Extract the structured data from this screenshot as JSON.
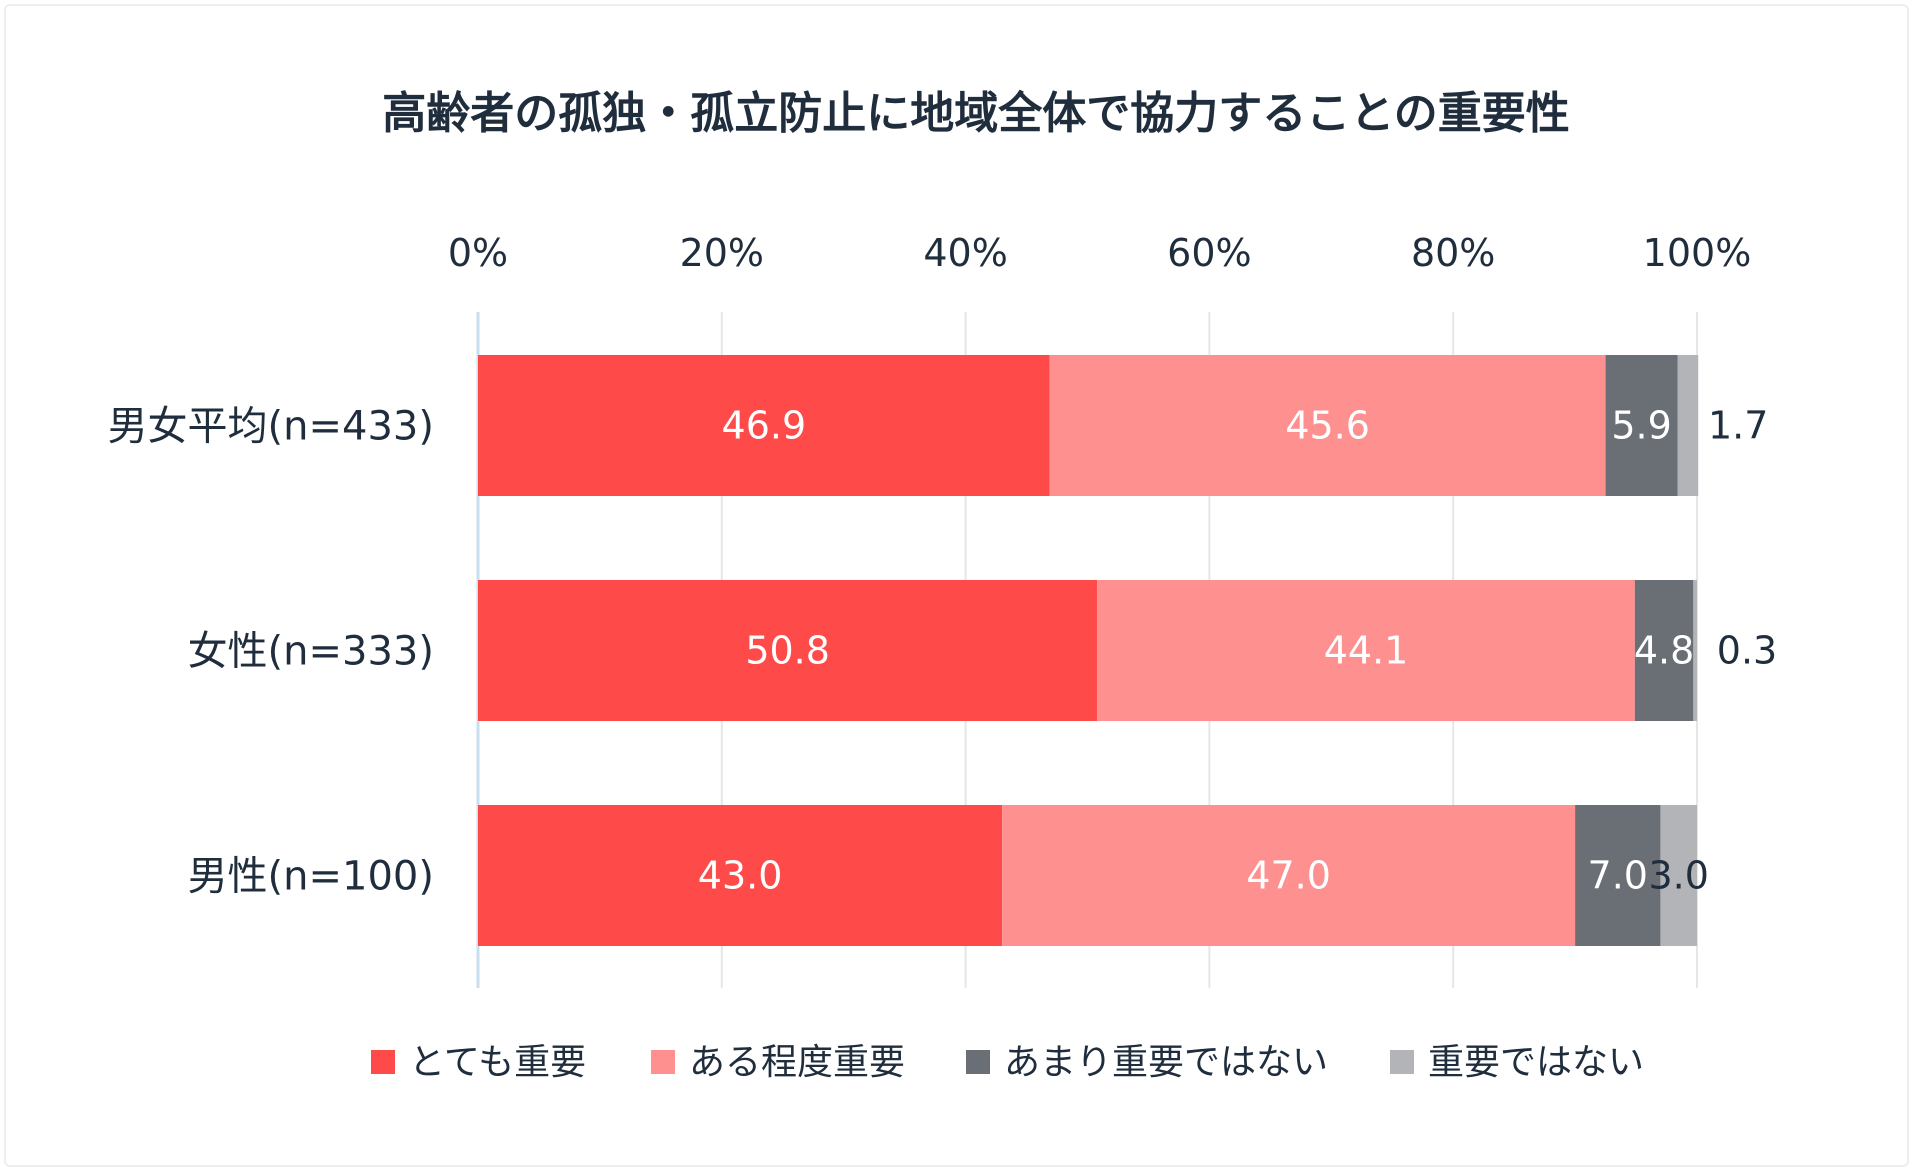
{
  "chart_data": {
    "type": "bar",
    "orientation": "horizontal",
    "stacked": true,
    "title": "高齢者の孤独・孤立防止に地域全体で協力することの重要性",
    "xlim": [
      0,
      100
    ],
    "x_ticks": [
      "0%",
      "20%",
      "40%",
      "60%",
      "80%",
      "100%"
    ],
    "grid": true,
    "legend_position": "bottom",
    "categories": [
      "男女平均(n=433)",
      "女性(n=333)",
      "男性(n=100)"
    ],
    "series": [
      {
        "name": "とても重要",
        "color": "#ff4a4a",
        "values": [
          46.9,
          50.8,
          43.0
        ],
        "labels": [
          "46.9",
          "50.8",
          "43.0"
        ]
      },
      {
        "name": "ある程度重要",
        "color": "#ff9090",
        "values": [
          45.6,
          44.1,
          47.0
        ],
        "labels": [
          "45.6",
          "44.1",
          "47.0"
        ]
      },
      {
        "name": "あまり重要ではない",
        "color": "#6a6e75",
        "values": [
          5.9,
          4.8,
          7.0
        ],
        "labels": [
          "5.9",
          "4.8",
          "7.0"
        ]
      },
      {
        "name": "重要ではない",
        "color": "#b2b4b8",
        "values": [
          1.7,
          0.3,
          3.0
        ],
        "labels": [
          "1.7",
          "0.3",
          "3.0"
        ]
      }
    ]
  }
}
